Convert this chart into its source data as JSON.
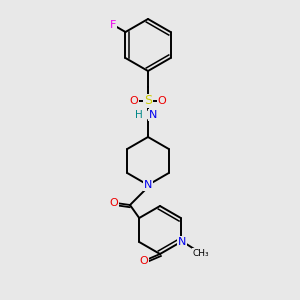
{
  "bg_color": "#e8e8e8",
  "atom_colors": {
    "C": "#000000",
    "N": "#0000ee",
    "O": "#ee0000",
    "S": "#cccc00",
    "F": "#ee00ee",
    "H": "#008888"
  },
  "bond_color": "#000000"
}
